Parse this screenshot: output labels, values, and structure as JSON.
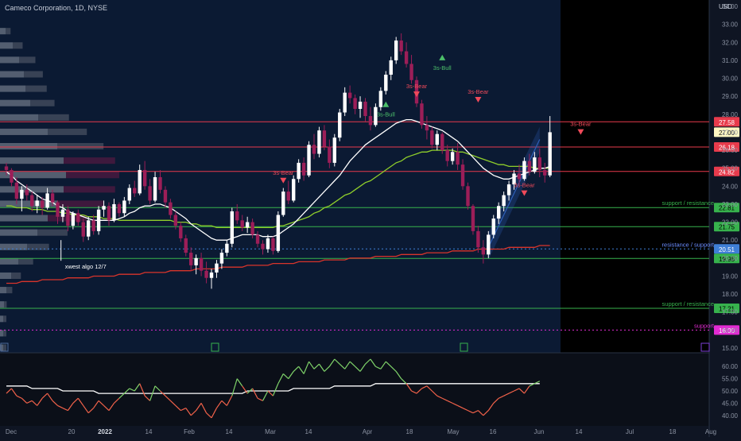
{
  "header": {
    "title": "Cameco Corporation, 1D, NYSE",
    "currency": "USD"
  },
  "colors": {
    "background": "#0f1523",
    "future_area": "#000000",
    "bull": "#ffffff",
    "bear": "#9c1e58",
    "ema_fast": "#ffffff",
    "ema_mid": "#8fce2b",
    "ema_slow": "#d9342b",
    "support_line": "#37b24d",
    "resistance_line": "#e83b4c",
    "channel": "#2e5fb8",
    "rsi_up": "#7fd36a",
    "rsi_down": "#f2624a",
    "label_text_support": "#37b24d",
    "label_text_resistance": "#6b8cff",
    "support_magenta": "#e22bd3"
  },
  "chart_data": [
    {
      "type": "candlestick",
      "title": "Cameco Corporation, 1D, NYSE",
      "ylim": [
        15.0,
        34.0
      ],
      "y_ticks": [
        "34.00",
        "33.00",
        "32.00",
        "31.00",
        "30.00",
        "29.00",
        "28.00",
        "27.00",
        "26.00",
        "25.00",
        "24.00",
        "23.00",
        "22.00",
        "21.00",
        "20.00",
        "19.00",
        "18.00",
        "17.00",
        "16.00",
        "15.00"
      ],
      "x_ticks": [
        "Dec",
        "20",
        "2022",
        "14",
        "Feb",
        "14",
        "Mar",
        "14",
        "Apr",
        "18",
        "May",
        "16",
        "Jun",
        "14",
        "Jul",
        "18",
        "Aug"
      ],
      "price_lines": [
        {
          "value": 27.58,
          "label": "27.58",
          "kind": "resistance"
        },
        {
          "value": 26.18,
          "label": "26.18",
          "kind": "resistance"
        },
        {
          "value": 24.82,
          "label": "24.82",
          "kind": "resistance"
        },
        {
          "value": 22.81,
          "label": "22.81",
          "kind": "support",
          "text": "support / resistance"
        },
        {
          "value": 21.75,
          "label": "21.75",
          "kind": "support"
        },
        {
          "value": 20.51,
          "label": "20.51",
          "kind": "dotted",
          "text": "resistance / support"
        },
        {
          "value": 19.98,
          "label": "19.98",
          "kind": "support"
        },
        {
          "value": 17.21,
          "label": "17.21",
          "kind": "support",
          "text": "support / resistance"
        },
        {
          "value": 16.0,
          "label": "16.00",
          "kind": "magenta",
          "text": "support"
        }
      ],
      "last_price": "27.00",
      "candles": [
        [
          25.1,
          25.3,
          24.6,
          24.9
        ],
        [
          24.9,
          25.0,
          24.0,
          24.2
        ],
        [
          24.2,
          24.5,
          23.0,
          23.3
        ],
        [
          23.3,
          24.0,
          22.6,
          23.8
        ],
        [
          23.8,
          24.1,
          23.2,
          23.5
        ],
        [
          23.5,
          23.7,
          22.6,
          22.9
        ],
        [
          22.9,
          23.5,
          22.5,
          23.2
        ],
        [
          23.2,
          23.4,
          22.4,
          22.8
        ],
        [
          22.8,
          23.9,
          22.7,
          23.6
        ],
        [
          23.6,
          23.8,
          22.9,
          23.1
        ],
        [
          23.1,
          23.2,
          21.9,
          22.3
        ],
        [
          22.3,
          23.0,
          22.0,
          22.7
        ],
        [
          22.7,
          22.9,
          21.5,
          21.8
        ],
        [
          21.8,
          22.6,
          21.6,
          22.5
        ],
        [
          22.5,
          22.7,
          21.8,
          22.0
        ],
        [
          22.0,
          22.2,
          20.9,
          21.2
        ],
        [
          21.2,
          22.3,
          21.0,
          22.1
        ],
        [
          22.1,
          22.4,
          21.3,
          21.5
        ],
        [
          21.5,
          22.9,
          21.3,
          22.7
        ],
        [
          22.7,
          23.2,
          22.3,
          22.9
        ],
        [
          22.9,
          23.1,
          21.8,
          22.1
        ],
        [
          22.1,
          23.3,
          22.0,
          23.0
        ],
        [
          23.0,
          23.1,
          22.3,
          22.5
        ],
        [
          22.5,
          23.4,
          22.3,
          23.2
        ],
        [
          23.2,
          24.1,
          23.0,
          23.9
        ],
        [
          23.9,
          24.3,
          23.4,
          23.6
        ],
        [
          23.6,
          25.2,
          23.5,
          24.9
        ],
        [
          24.9,
          25.4,
          23.8,
          24.0
        ],
        [
          24.0,
          24.4,
          23.0,
          23.2
        ],
        [
          23.2,
          24.8,
          23.1,
          24.5
        ],
        [
          24.5,
          24.9,
          23.6,
          23.8
        ],
        [
          23.8,
          24.0,
          22.8,
          23.1
        ],
        [
          23.1,
          23.3,
          22.2,
          22.4
        ],
        [
          22.4,
          22.6,
          21.6,
          21.8
        ],
        [
          21.8,
          22.0,
          20.9,
          21.1
        ],
        [
          21.1,
          21.3,
          20.1,
          20.3
        ],
        [
          20.3,
          20.6,
          19.3,
          19.6
        ],
        [
          19.6,
          20.2,
          19.1,
          20.0
        ],
        [
          20.0,
          20.3,
          19.0,
          19.3
        ],
        [
          19.3,
          19.8,
          18.6,
          18.9
        ],
        [
          18.9,
          19.4,
          18.3,
          19.2
        ],
        [
          19.2,
          19.9,
          18.9,
          19.7
        ],
        [
          19.7,
          20.5,
          19.4,
          20.3
        ],
        [
          20.3,
          21.0,
          20.1,
          20.8
        ],
        [
          20.8,
          22.8,
          20.6,
          22.6
        ],
        [
          22.6,
          23.0,
          21.9,
          22.1
        ],
        [
          22.1,
          22.4,
          21.5,
          21.7
        ],
        [
          21.7,
          22.3,
          21.4,
          22.0
        ],
        [
          22.0,
          22.2,
          21.1,
          21.3
        ],
        [
          21.3,
          21.5,
          20.6,
          20.8
        ],
        [
          20.8,
          21.0,
          20.2,
          20.5
        ],
        [
          20.5,
          21.3,
          20.3,
          21.1
        ],
        [
          21.1,
          21.2,
          20.2,
          20.4
        ],
        [
          20.4,
          22.6,
          20.3,
          22.4
        ],
        [
          22.4,
          23.9,
          22.3,
          23.7
        ],
        [
          23.7,
          24.3,
          23.0,
          23.2
        ],
        [
          23.2,
          24.6,
          23.1,
          24.4
        ],
        [
          24.4,
          25.5,
          24.2,
          25.3
        ],
        [
          25.3,
          25.6,
          24.3,
          24.6
        ],
        [
          24.6,
          26.5,
          24.5,
          26.3
        ],
        [
          26.3,
          26.9,
          25.5,
          25.8
        ],
        [
          25.8,
          27.3,
          25.6,
          27.1
        ],
        [
          27.1,
          27.4,
          26.0,
          26.2
        ],
        [
          26.2,
          26.6,
          25.0,
          25.3
        ],
        [
          25.3,
          26.9,
          25.1,
          26.7
        ],
        [
          26.7,
          28.3,
          26.5,
          28.1
        ],
        [
          28.1,
          29.5,
          27.9,
          29.2
        ],
        [
          29.2,
          29.6,
          28.6,
          28.9
        ],
        [
          28.9,
          29.1,
          28.0,
          28.3
        ],
        [
          28.3,
          29.0,
          27.8,
          28.7
        ],
        [
          28.7,
          28.9,
          27.6,
          27.9
        ],
        [
          27.9,
          28.4,
          27.1,
          27.4
        ],
        [
          27.4,
          28.6,
          27.3,
          28.4
        ],
        [
          28.4,
          29.5,
          28.2,
          29.3
        ],
        [
          29.3,
          30.4,
          29.1,
          30.2
        ],
        [
          30.2,
          31.2,
          29.9,
          31.0
        ],
        [
          31.0,
          32.3,
          30.8,
          32.1
        ],
        [
          32.1,
          32.5,
          31.3,
          31.5
        ],
        [
          31.5,
          32.0,
          30.6,
          30.8
        ],
        [
          30.8,
          31.3,
          29.7,
          29.9
        ],
        [
          29.9,
          30.1,
          28.4,
          28.6
        ],
        [
          28.6,
          28.8,
          27.2,
          27.4
        ],
        [
          27.4,
          27.9,
          26.6,
          27.1
        ],
        [
          27.1,
          27.3,
          26.1,
          26.3
        ],
        [
          26.3,
          27.1,
          26.0,
          26.9
        ],
        [
          26.9,
          27.0,
          25.8,
          26.0
        ],
        [
          26.0,
          26.3,
          25.1,
          25.4
        ],
        [
          25.4,
          26.1,
          25.2,
          25.9
        ],
        [
          25.9,
          26.4,
          24.9,
          25.2
        ],
        [
          25.2,
          25.5,
          23.8,
          24.0
        ],
        [
          24.0,
          24.2,
          22.7,
          22.9
        ],
        [
          22.9,
          23.0,
          21.3,
          21.5
        ],
        [
          21.5,
          21.8,
          20.3,
          20.6
        ],
        [
          20.6,
          21.0,
          19.7,
          20.2
        ],
        [
          20.2,
          21.5,
          20.0,
          21.3
        ],
        [
          21.3,
          22.4,
          21.1,
          22.2
        ],
        [
          22.2,
          23.1,
          21.9,
          22.9
        ],
        [
          22.9,
          23.7,
          22.6,
          23.5
        ],
        [
          23.5,
          24.3,
          23.2,
          24.1
        ],
        [
          24.1,
          24.9,
          23.8,
          24.7
        ],
        [
          24.7,
          25.2,
          24.1,
          24.4
        ],
        [
          24.4,
          25.6,
          24.3,
          25.4
        ],
        [
          25.4,
          25.8,
          24.6,
          24.8
        ],
        [
          24.8,
          25.9,
          24.7,
          25.6
        ],
        [
          25.6,
          26.1,
          24.5,
          24.9
        ],
        [
          24.9,
          25.3,
          24.2,
          24.6
        ],
        [
          24.6,
          27.9,
          24.5,
          27.0
        ]
      ],
      "ema_fast": [
        24.8,
        24.6,
        24.3,
        24.1,
        23.9,
        23.7,
        23.5,
        23.3,
        23.2,
        23.1,
        22.9,
        22.8,
        22.6,
        22.5,
        22.4,
        22.3,
        22.2,
        22.1,
        22.1,
        22.1,
        22.1,
        22.1,
        22.2,
        22.3,
        22.5,
        22.6,
        22.8,
        22.9,
        22.9,
        23.0,
        23.0,
        22.9,
        22.8,
        22.6,
        22.4,
        22.2,
        21.9,
        21.7,
        21.5,
        21.3,
        21.1,
        21.0,
        21.0,
        21.0,
        21.1,
        21.2,
        21.3,
        21.3,
        21.3,
        21.3,
        21.2,
        21.2,
        21.2,
        21.3,
        21.5,
        21.7,
        21.9,
        22.2,
        22.5,
        22.8,
        23.1,
        23.4,
        23.7,
        24.0,
        24.3,
        24.6,
        25.0,
        25.4,
        25.7,
        26.0,
        26.3,
        26.5,
        26.7,
        26.9,
        27.1,
        27.3,
        27.5,
        27.6,
        27.7,
        27.7,
        27.6,
        27.5,
        27.4,
        27.3,
        27.2,
        27.1,
        26.9,
        26.7,
        26.5,
        26.2,
        25.9,
        25.6,
        25.3,
        25.0,
        24.8,
        24.6,
        24.5,
        24.4,
        24.4,
        24.5,
        24.6,
        24.7,
        24.8,
        24.9,
        25.0,
        25.0,
        25.1
      ],
      "ema_mid": [
        22.9,
        22.9,
        22.8,
        22.8,
        22.8,
        22.7,
        22.7,
        22.7,
        22.6,
        22.6,
        22.6,
        22.5,
        22.5,
        22.4,
        22.4,
        22.4,
        22.3,
        22.3,
        22.3,
        22.2,
        22.2,
        22.2,
        22.1,
        22.1,
        22.1,
        22.1,
        22.1,
        22.1,
        22.1,
        22.1,
        22.1,
        22.1,
        22.1,
        22.0,
        22.0,
        22.0,
        21.9,
        21.9,
        21.8,
        21.8,
        21.8,
        21.7,
        21.7,
        21.7,
        21.7,
        21.7,
        21.7,
        21.7,
        21.7,
        21.7,
        21.7,
        21.7,
        21.7,
        21.8,
        21.8,
        21.9,
        22.0,
        22.1,
        22.2,
        22.3,
        22.5,
        22.6,
        22.8,
        22.9,
        23.1,
        23.3,
        23.5,
        23.6,
        23.8,
        24.0,
        24.2,
        24.3,
        24.5,
        24.7,
        24.9,
        25.1,
        25.3,
        25.4,
        25.6,
        25.7,
        25.8,
        25.9,
        25.9,
        26.0,
        26.0,
        26.0,
        26.0,
        26.0,
        25.9,
        25.9,
        25.8,
        25.7,
        25.6,
        25.5,
        25.4,
        25.3,
        25.2,
        25.2,
        25.1,
        25.1,
        25.1,
        25.1,
        25.1,
        25.0,
        25.0,
        25.0,
        25.0
      ],
      "ema_slow": [
        18.6,
        18.6,
        18.6,
        18.7,
        18.7,
        18.7,
        18.7,
        18.8,
        18.8,
        18.8,
        18.8,
        18.8,
        18.9,
        18.9,
        18.9,
        18.9,
        18.9,
        19.0,
        19.0,
        19.0,
        19.0,
        19.0,
        19.1,
        19.1,
        19.1,
        19.1,
        19.1,
        19.2,
        19.2,
        19.2,
        19.2,
        19.2,
        19.3,
        19.3,
        19.3,
        19.3,
        19.3,
        19.4,
        19.4,
        19.4,
        19.4,
        19.4,
        19.5,
        19.5,
        19.5,
        19.5,
        19.5,
        19.6,
        19.6,
        19.6,
        19.6,
        19.6,
        19.7,
        19.7,
        19.7,
        19.7,
        19.7,
        19.8,
        19.8,
        19.8,
        19.8,
        19.8,
        19.9,
        19.9,
        19.9,
        19.9,
        19.9,
        20.0,
        20.0,
        20.0,
        20.0,
        20.0,
        20.1,
        20.1,
        20.1,
        20.1,
        20.1,
        20.2,
        20.2,
        20.2,
        20.2,
        20.2,
        20.3,
        20.3,
        20.3,
        20.3,
        20.3,
        20.4,
        20.4,
        20.4,
        20.4,
        20.4,
        20.5,
        20.5,
        20.5,
        20.5,
        20.5,
        20.5,
        20.6,
        20.6,
        20.6,
        20.6,
        20.6,
        20.6,
        20.7,
        20.7,
        20.7
      ],
      "annotations": [
        {
          "text": "3s-Bear",
          "at": 54,
          "price": 24.2,
          "kind": "bear"
        },
        {
          "text": "3s-Bull",
          "at": 74,
          "price": 28.4,
          "kind": "bull"
        },
        {
          "text": "3s-Bull",
          "at": 85,
          "price": 31.0,
          "kind": "bull"
        },
        {
          "text": "3s-Bear",
          "at": 80,
          "price": 29.0,
          "kind": "bear"
        },
        {
          "text": "3s-Bear",
          "at": 92,
          "price": 28.7,
          "kind": "bear"
        },
        {
          "text": "3s-Bear",
          "at": 101,
          "price": 23.5,
          "kind": "bear"
        },
        {
          "text": "3s-Bear",
          "at": 112,
          "price": 26.9,
          "kind": "bear"
        },
        {
          "text": "xwest algo 12/7",
          "at": 6,
          "price": 19.5,
          "kind": "note"
        }
      ]
    },
    {
      "type": "line",
      "title": "",
      "ylim": [
        37.0,
        63.0
      ],
      "y_ticks": [
        "60.00",
        "55.00",
        "50.00",
        "45.00",
        "40.00"
      ],
      "values": [
        49,
        51,
        48,
        47,
        45,
        46,
        44,
        47,
        49,
        46,
        44,
        43,
        42,
        45,
        47,
        44,
        41,
        43,
        46,
        44,
        42,
        45,
        47,
        49,
        51,
        50,
        53,
        48,
        46,
        52,
        50,
        48,
        46,
        44,
        42,
        43,
        40,
        42,
        45,
        41,
        39,
        43,
        46,
        44,
        48,
        55,
        52,
        49,
        51,
        47,
        46,
        50,
        48,
        53,
        57,
        55,
        58,
        60,
        57,
        62,
        59,
        61,
        58,
        60,
        63,
        61,
        59,
        62,
        60,
        58,
        61,
        63,
        60,
        59,
        62,
        60,
        58,
        55,
        53,
        50,
        49,
        51,
        52,
        50,
        48,
        47,
        46,
        45,
        44,
        43,
        42,
        41,
        42,
        40,
        42,
        45,
        47,
        48,
        49,
        50,
        51,
        49,
        52,
        53,
        54
      ],
      "signal": [
        52,
        52,
        52,
        52,
        52,
        51,
        51,
        51,
        51,
        51,
        51,
        50,
        50,
        50,
        50,
        50,
        50,
        50,
        49,
        49,
        49,
        49,
        49,
        49,
        49,
        49,
        49,
        49,
        49,
        49,
        49,
        49,
        49,
        49,
        49,
        49,
        49,
        49,
        49,
        49,
        49,
        49,
        49,
        49,
        49,
        49,
        49,
        50,
        50,
        50,
        50,
        50,
        50,
        50,
        50,
        50,
        51,
        51,
        51,
        51,
        51,
        51,
        51,
        51,
        52,
        52,
        52,
        52,
        52,
        52,
        52,
        52,
        53,
        53,
        53,
        53,
        53,
        53,
        53,
        53,
        53,
        53,
        53,
        53,
        53,
        53,
        53,
        53,
        53,
        53,
        53,
        53,
        53,
        53,
        53,
        53,
        53,
        53,
        53,
        53,
        53,
        53,
        53,
        53,
        53
      ]
    }
  ]
}
